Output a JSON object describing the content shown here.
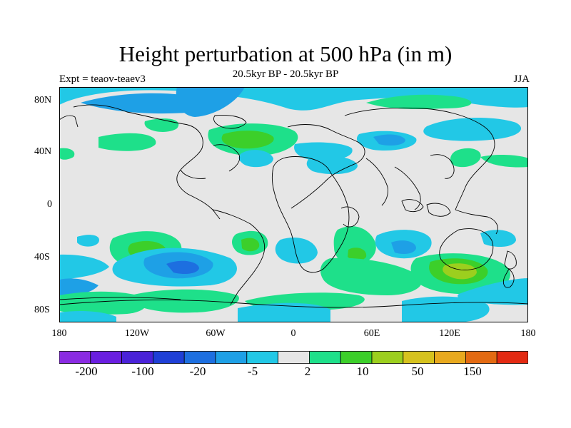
{
  "title": "Height perturbation at 500 hPa (in m)",
  "subtitle_left": "Expt = teaov-teaev3",
  "subtitle_center": "20.5kyr BP - 20.5kyr BP",
  "subtitle_right": "JJA",
  "lon_labels": [
    "180",
    "120W",
    "60W",
    "0",
    "60E",
    "120E",
    "180"
  ],
  "lat_labels": [
    "80N",
    "40N",
    "0",
    "40S",
    "80S"
  ],
  "colorbar": {
    "colors": [
      "#8a2be2",
      "#6a1ee0",
      "#4a22d8",
      "#1f3fd6",
      "#1d6fe0",
      "#1ea0e6",
      "#22c8e6",
      "#e6e6e6",
      "#1ee08a",
      "#3ccf2a",
      "#9ccf1e",
      "#d6c21e",
      "#e8a91e",
      "#e36a12",
      "#e32a12"
    ],
    "labels": [
      "-200",
      "-100",
      "-20",
      "-5",
      "2",
      "10",
      "50",
      "150"
    ]
  }
}
